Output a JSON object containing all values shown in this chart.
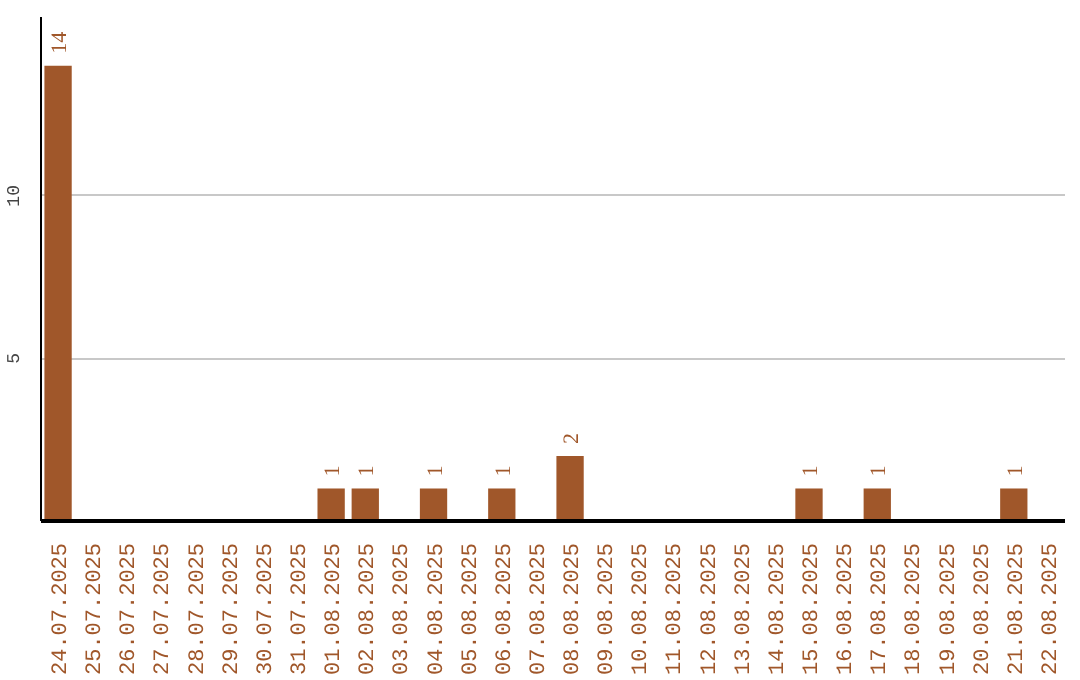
{
  "chart_data": {
    "type": "bar",
    "categories": [
      "24.07.2025",
      "25.07.2025",
      "26.07.2025",
      "27.07.2025",
      "28.07.2025",
      "29.07.2025",
      "30.07.2025",
      "31.07.2025",
      "01.08.2025",
      "02.08.2025",
      "03.08.2025",
      "04.08.2025",
      "05.08.2025",
      "06.08.2025",
      "07.08.2025",
      "08.08.2025",
      "09.08.2025",
      "10.08.2025",
      "11.08.2025",
      "12.08.2025",
      "13.08.2025",
      "14.08.2025",
      "15.08.2025",
      "16.08.2025",
      "17.08.2025",
      "18.08.2025",
      "19.08.2025",
      "20.08.2025",
      "21.08.2025",
      "22.08.2025"
    ],
    "values": [
      14,
      0,
      0,
      0,
      0,
      0,
      0,
      0,
      1,
      1,
      0,
      1,
      0,
      1,
      0,
      2,
      0,
      0,
      0,
      0,
      0,
      0,
      1,
      0,
      1,
      0,
      0,
      0,
      1,
      0
    ],
    "value_labels": [
      "14",
      null,
      null,
      null,
      null,
      null,
      null,
      null,
      "1",
      "1",
      null,
      "1",
      null,
      "1",
      null,
      "2",
      null,
      null,
      null,
      null,
      null,
      null,
      "1",
      null,
      "1",
      null,
      null,
      null,
      "1",
      null
    ],
    "color": "#a0572a",
    "ylim": [
      0,
      15.5
    ],
    "yticks": [
      5,
      10
    ],
    "grid": "y"
  }
}
